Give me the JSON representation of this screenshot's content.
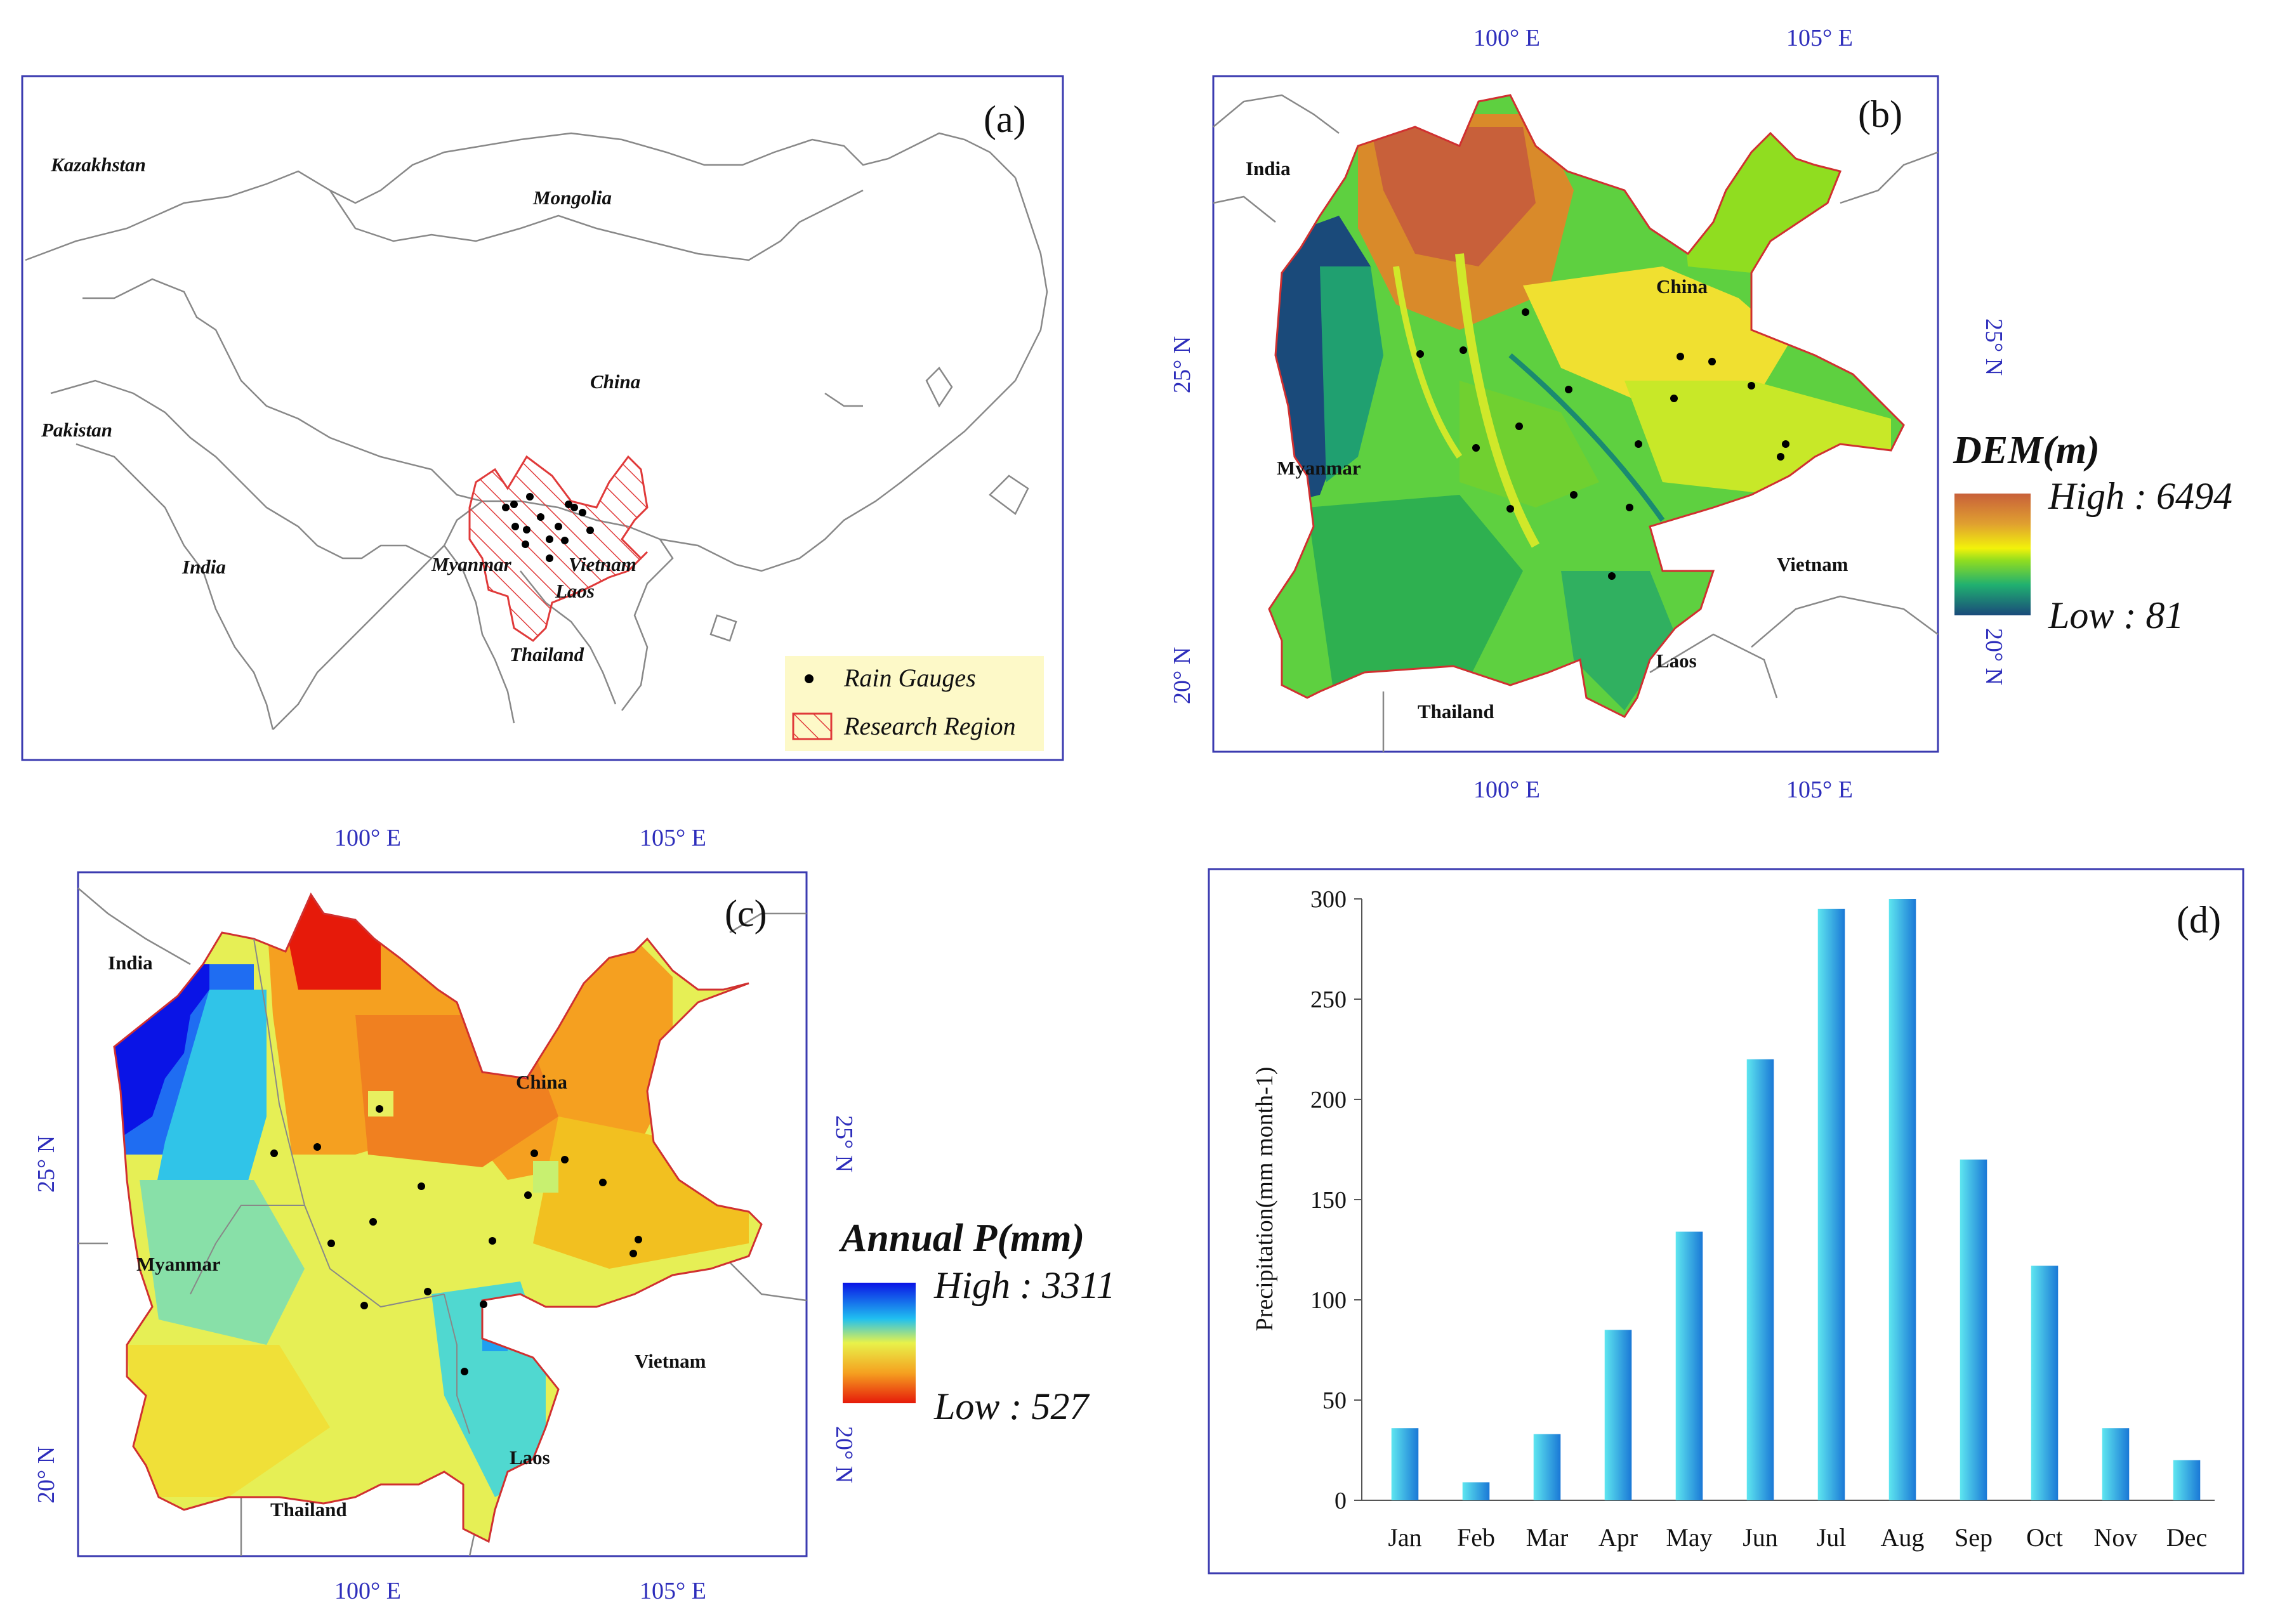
{
  "panel_a": {
    "label": "(a)",
    "countries": [
      "Kazakhstan",
      "Mongolia",
      "China",
      "Pakistan",
      "India",
      "Myanmar",
      "Vietnam",
      "Laos",
      "Thailand"
    ],
    "legend": {
      "gauges": "Rain Gauges",
      "region": "Research Region"
    }
  },
  "panel_b": {
    "label": "(b)",
    "lon_labels": [
      "100° E",
      "105° E"
    ],
    "lat_labels": [
      "25° N",
      "20° N"
    ],
    "countries": [
      "India",
      "China",
      "Myanmar",
      "Vietnam",
      "Laos",
      "Thailand"
    ],
    "legend": {
      "title": "DEM(m)",
      "high": "High : 6494",
      "low": "Low : 81"
    },
    "colors": {
      "high": "#c8603a",
      "mid": "#f2f20a",
      "low": "#1a4a7a"
    }
  },
  "panel_c": {
    "label": "(c)",
    "lon_labels": [
      "100° E",
      "105° E"
    ],
    "lat_labels": [
      "25° N",
      "20° N"
    ],
    "countries": [
      "India",
      "China",
      "Myanmar",
      "Vietnam",
      "Laos",
      "Thailand"
    ],
    "legend": {
      "title": "Annual P(mm)",
      "high": "High : 3311",
      "low": "Low : 527"
    },
    "colors": {
      "high": "#0a14e6",
      "mid": "#e8f24a",
      "low": "#e61a0a"
    }
  },
  "chart_data": {
    "type": "bar",
    "panel_label": "(d)",
    "title": "",
    "xlabel": "",
    "ylabel": "Precipitation(mm month-1)",
    "categories": [
      "Jan",
      "Feb",
      "Mar",
      "Apr",
      "May",
      "Jun",
      "Jul",
      "Aug",
      "Sep",
      "Oct",
      "Nov",
      "Dec"
    ],
    "values": [
      36,
      9,
      33,
      85,
      134,
      220,
      295,
      300,
      170,
      117,
      36,
      20
    ],
    "ylim": [
      0,
      300
    ],
    "yticks": [
      0,
      50,
      100,
      150,
      200,
      250,
      300
    ],
    "grid": false,
    "colors": {
      "bar_light": "#5ee6f0",
      "bar_dark": "#1a78d6"
    }
  }
}
